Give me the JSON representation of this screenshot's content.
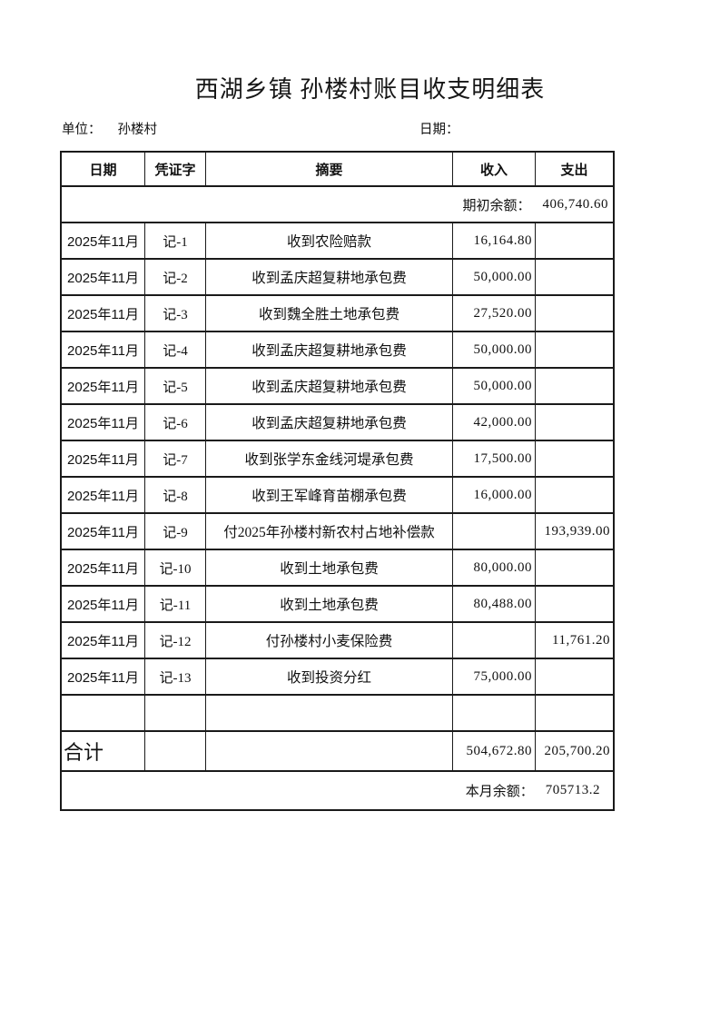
{
  "page": {
    "title": "西湖乡镇 孙楼村账目收支明细表"
  },
  "meta": {
    "unit_label": "单位：",
    "unit_value": "孙楼村",
    "date_label": "日期：",
    "date_value": ""
  },
  "table": {
    "columns": [
      "日期",
      "凭证字",
      "摘要",
      "收入",
      "支出"
    ],
    "opening_balance": {
      "label": "期初余额：",
      "value": "406,740.60"
    },
    "rows": [
      {
        "date": "2025年11月",
        "voucher": "记-1",
        "summary": "收到农险赔款",
        "income": "16,164.80",
        "expense": ""
      },
      {
        "date": "2025年11月",
        "voucher": "记-2",
        "summary": "收到孟庆超复耕地承包费",
        "income": "50,000.00",
        "expense": ""
      },
      {
        "date": "2025年11月",
        "voucher": "记-3",
        "summary": "收到魏全胜土地承包费",
        "income": "27,520.00",
        "expense": ""
      },
      {
        "date": "2025年11月",
        "voucher": "记-4",
        "summary": "收到孟庆超复耕地承包费",
        "income": "50,000.00",
        "expense": ""
      },
      {
        "date": "2025年11月",
        "voucher": "记-5",
        "summary": "收到孟庆超复耕地承包费",
        "income": "50,000.00",
        "expense": ""
      },
      {
        "date": "2025年11月",
        "voucher": "记-6",
        "summary": "收到孟庆超复耕地承包费",
        "income": "42,000.00",
        "expense": ""
      },
      {
        "date": "2025年11月",
        "voucher": "记-7",
        "summary": "收到张学东金线河堤承包费",
        "income": "17,500.00",
        "expense": ""
      },
      {
        "date": "2025年11月",
        "voucher": "记-8",
        "summary": "收到王军峰育苗棚承包费",
        "income": "16,000.00",
        "expense": ""
      },
      {
        "date": "2025年11月",
        "voucher": "记-9",
        "summary": "付2025年孙楼村新农村占地补偿款",
        "income": "",
        "expense": "193,939.00"
      },
      {
        "date": "2025年11月",
        "voucher": "记-10",
        "summary": "收到土地承包费",
        "income": "80,000.00",
        "expense": ""
      },
      {
        "date": "2025年11月",
        "voucher": "记-11",
        "summary": "收到土地承包费",
        "income": "80,488.00",
        "expense": ""
      },
      {
        "date": "2025年11月",
        "voucher": "记-12",
        "summary": "付孙楼村小麦保险费",
        "income": "",
        "expense": "11,761.20"
      },
      {
        "date": "2025年11月",
        "voucher": "记-13",
        "summary": "收到投资分红",
        "income": "75,000.00",
        "expense": ""
      },
      {
        "date": "",
        "voucher": "",
        "summary": "",
        "income": "",
        "expense": ""
      }
    ],
    "total": {
      "label": "合计",
      "income": "504,672.80",
      "expense": "205,700.20"
    },
    "closing_balance": {
      "label": "本月余额：",
      "value": "705713.2"
    }
  }
}
